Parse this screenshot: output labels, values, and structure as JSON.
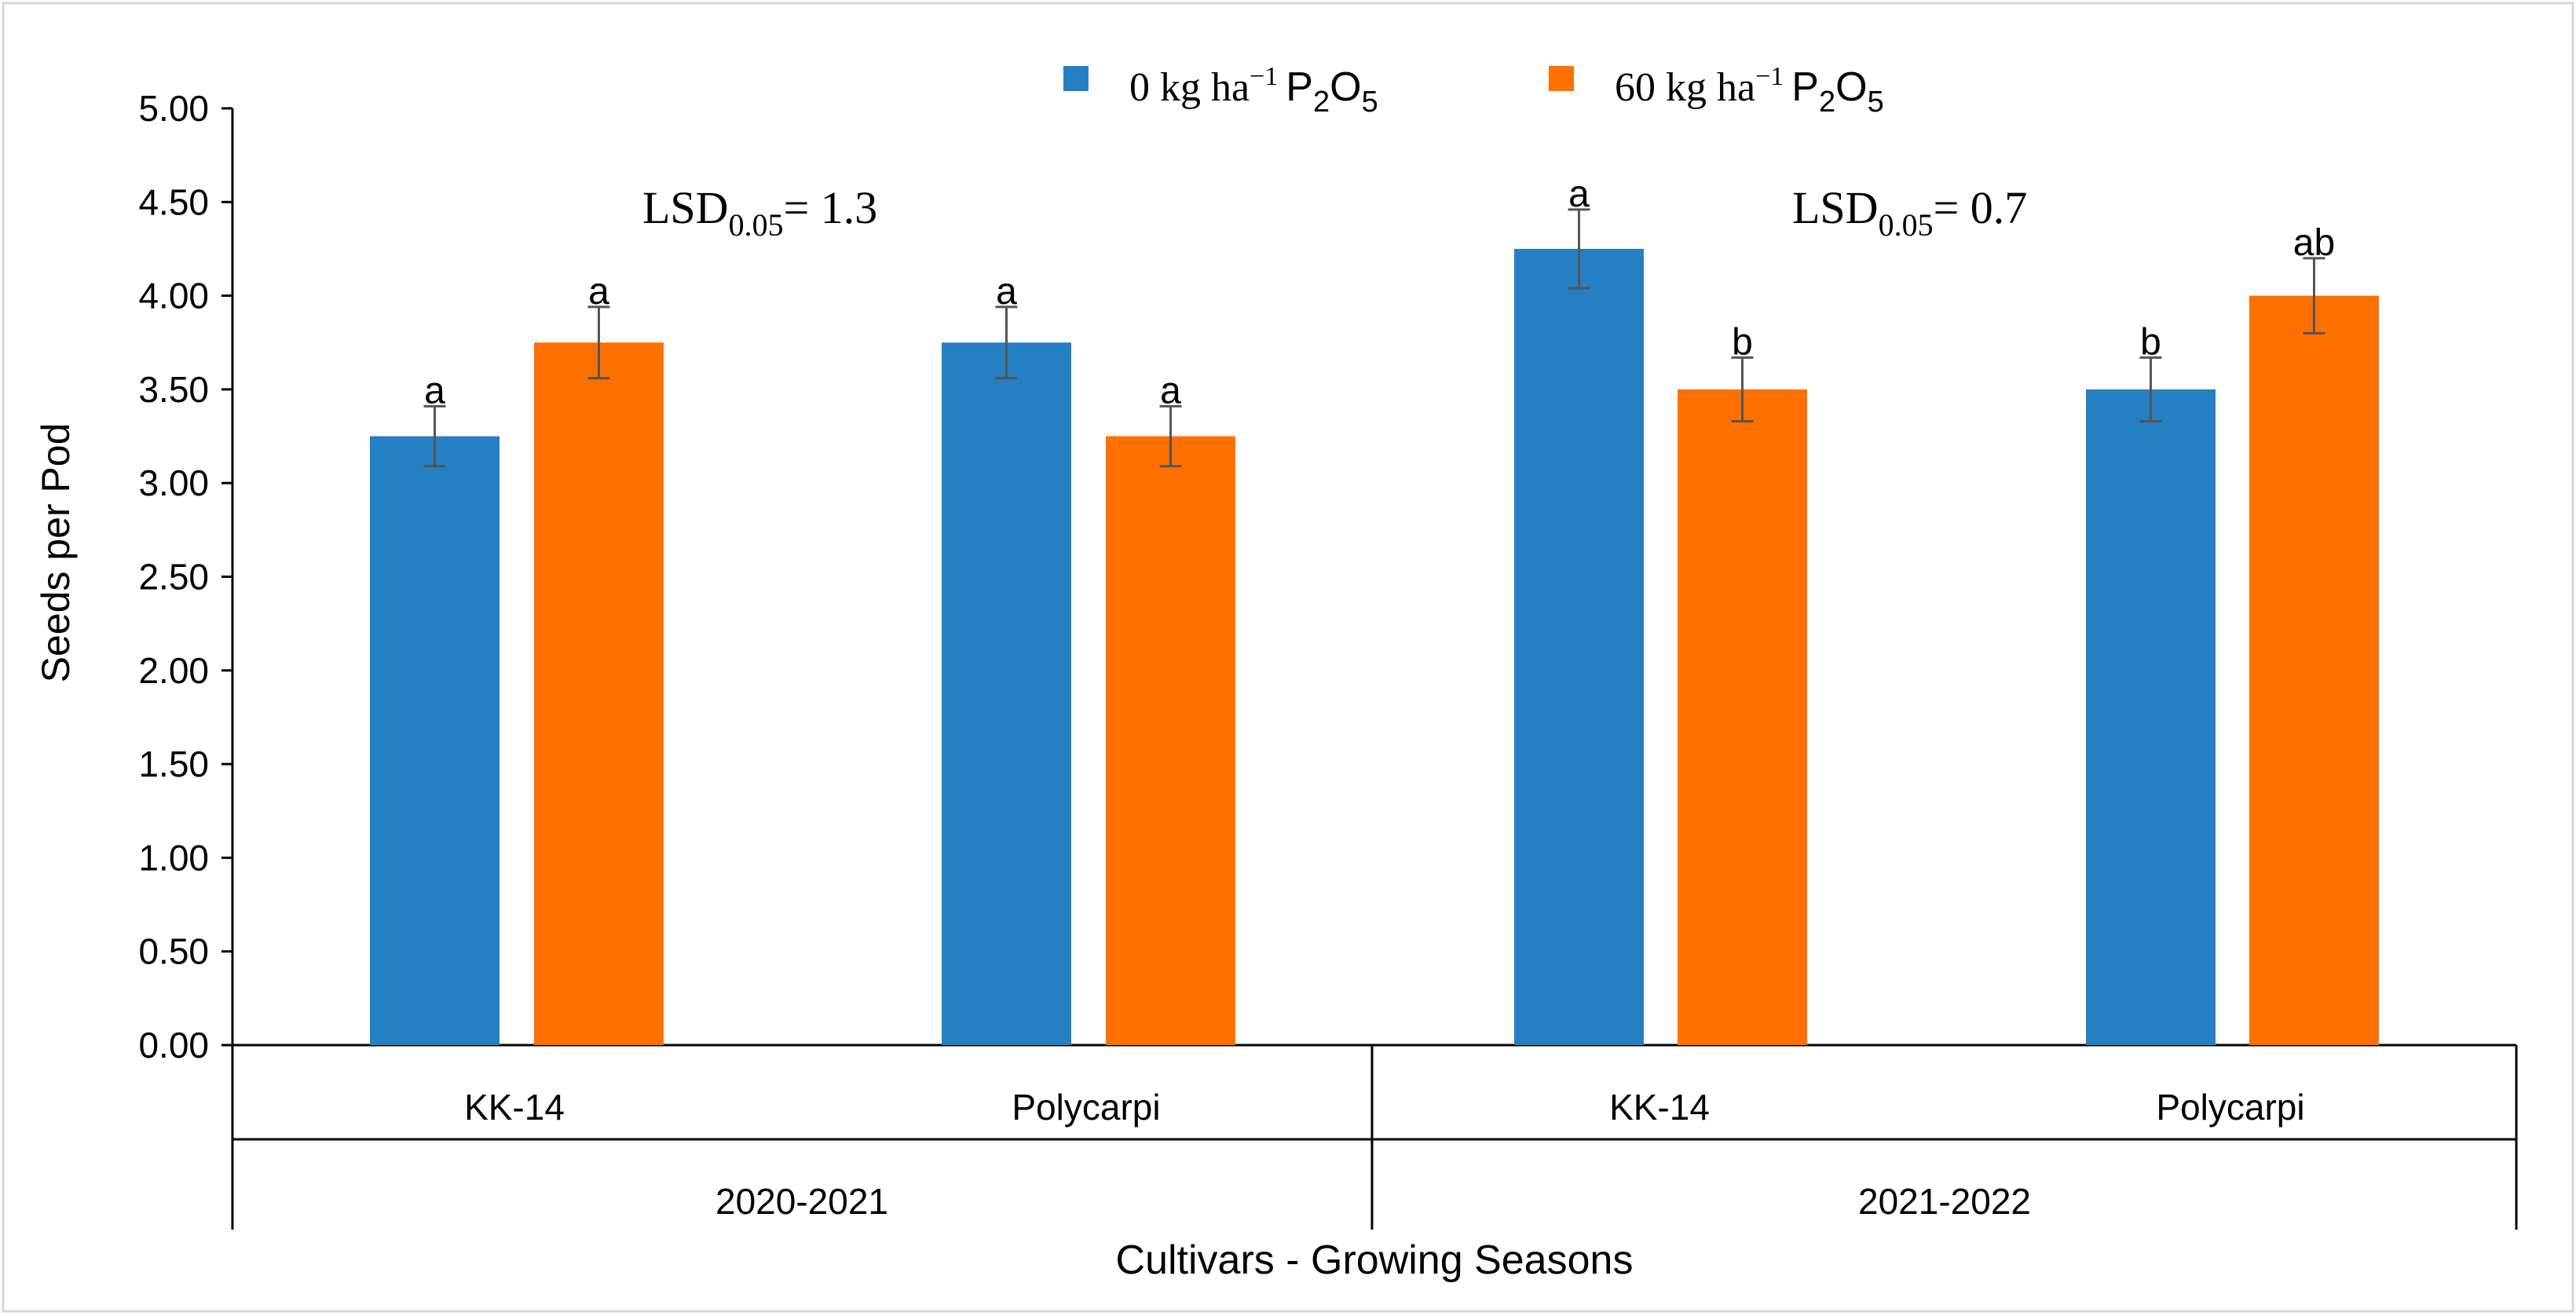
{
  "chart_data": {
    "type": "bar",
    "ylabel": "Seeds per Pod",
    "xlabel": "Cultivars - Growing Seasons",
    "ylim": [
      0,
      5
    ],
    "ytick_step": 0.5,
    "yticks": [
      "0.00",
      "0.50",
      "1.00",
      "1.50",
      "2.00",
      "2.50",
      "3.00",
      "3.50",
      "4.00",
      "4.50",
      "5.00"
    ],
    "grid": false,
    "legend_position": "top-center",
    "seasons": [
      "2020-2021",
      "2021-2022"
    ],
    "categories": [
      "KK-14",
      "Polycarpi",
      "KK-14",
      "Polycarpi"
    ],
    "series": [
      {
        "name": "0 kg ha⁻¹ P₂O₅",
        "legend_main": "0 kg ha",
        "legend_sup": "−1",
        "legend_tail": "P",
        "legend_sub1": "2",
        "legend_mid": "O",
        "legend_sub2": "5",
        "color": "#2480c2",
        "values": [
          3.25,
          3.75,
          4.25,
          3.5
        ],
        "errors": [
          0.16,
          0.19,
          0.21,
          0.17
        ],
        "letters": [
          "a",
          "a",
          "a",
          "b"
        ]
      },
      {
        "name": "60 kg ha⁻¹ P₂O₅",
        "legend_main": "60 kg ha",
        "legend_sup": "−1",
        "legend_tail": "P",
        "legend_sub1": "2",
        "legend_mid": "O",
        "legend_sub2": "5",
        "color": "#ff7000",
        "values": [
          3.75,
          3.25,
          3.5,
          4.0
        ],
        "errors": [
          0.19,
          0.16,
          0.17,
          0.2
        ],
        "letters": [
          "a",
          "a",
          "b",
          "ab"
        ]
      }
    ],
    "annotations": [
      {
        "main": "LSD",
        "sub": "0.05",
        "tail": "= 1.3"
      },
      {
        "main": "LSD",
        "sub": "0.05",
        "tail": "= 0.7"
      }
    ]
  }
}
